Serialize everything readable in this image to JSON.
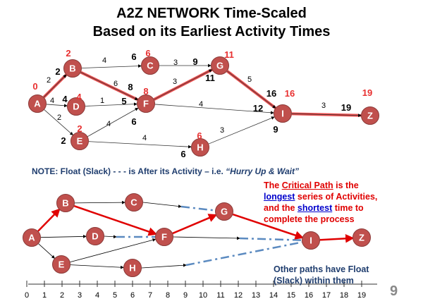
{
  "title_line1": "A2Z NETWORK Time-Scaled",
  "title_line2": "Based on its Earliest Activity Times",
  "colors": {
    "node": "#c0504d",
    "critical": "#e83030",
    "float": "#5b8ac0",
    "note": "#1f3d6e",
    "critical_text": "#e00000",
    "emphasis": "#0000cc"
  },
  "top_network": {
    "nodes": [
      {
        "id": "A",
        "es": "0"
      },
      {
        "id": "B",
        "es": "2"
      },
      {
        "id": "C",
        "es": "6"
      },
      {
        "id": "D",
        "es": "4"
      },
      {
        "id": "E",
        "es": "2"
      },
      {
        "id": "F",
        "es": "8"
      },
      {
        "id": "G",
        "es": "11"
      },
      {
        "id": "H",
        "es": "6"
      },
      {
        "id": "I",
        "es": "16"
      },
      {
        "id": "Z",
        "es": "19"
      }
    ],
    "edges": [
      {
        "from": "A",
        "to": "B",
        "duration": "2",
        "critical": true
      },
      {
        "from": "A",
        "to": "D",
        "duration": "4",
        "critical": false
      },
      {
        "from": "A",
        "to": "E",
        "duration": "2",
        "critical": false
      },
      {
        "from": "B",
        "to": "C",
        "duration": "4",
        "critical": false
      },
      {
        "from": "B",
        "to": "F",
        "duration": "6",
        "critical": true
      },
      {
        "from": "D",
        "to": "F",
        "duration": "1",
        "critical": false
      },
      {
        "from": "E",
        "to": "F",
        "duration": "4",
        "critical": false
      },
      {
        "from": "E",
        "to": "H",
        "duration": "4",
        "critical": false
      },
      {
        "from": "C",
        "to": "G",
        "duration": "3",
        "critical": false
      },
      {
        "from": "F",
        "to": "G",
        "duration": "3",
        "critical": true
      },
      {
        "from": "F",
        "to": "I",
        "duration": "4",
        "critical": false
      },
      {
        "from": "G",
        "to": "I",
        "duration": "5",
        "critical": true
      },
      {
        "from": "H",
        "to": "I",
        "duration": "3",
        "critical": false
      },
      {
        "from": "I",
        "to": "Z",
        "duration": "3",
        "critical": true
      }
    ],
    "arrival_times": [
      "2",
      "6",
      "4",
      "2",
      "8",
      "5",
      "6",
      "9",
      "11",
      "16",
      "12",
      "9",
      "19",
      "6"
    ]
  },
  "note": {
    "prefix": "NOTE: Float (Slack)  - - - is After its Activity  – i.e. ",
    "quote": "“Hurry Up & Wait”"
  },
  "critical_text": {
    "p1": "The ",
    "cp": "Critical Path",
    "p2": " is the",
    "longest": "longest",
    "p3": " series of Activities,",
    "p4": "and the ",
    "shortest": "shortest",
    "p5": " time to",
    "p6": "complete the process"
  },
  "other_text": "Other paths have Float (Slack) within them",
  "timeline": {
    "ticks": [
      "0",
      "1",
      "2",
      "3",
      "4",
      "5",
      "6",
      "7",
      "8",
      "9",
      "10",
      "11",
      "12",
      "13",
      "14",
      "15",
      "16",
      "17",
      "18",
      "19"
    ]
  },
  "page_number": "9"
}
